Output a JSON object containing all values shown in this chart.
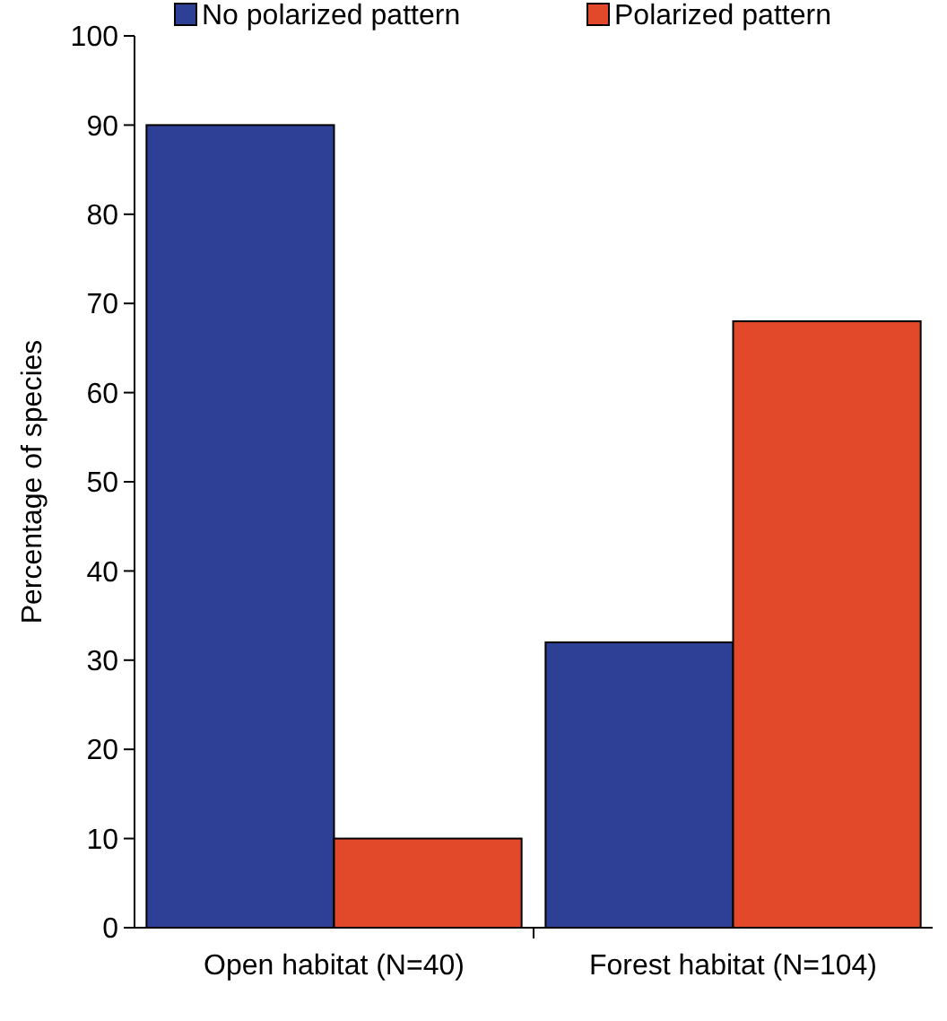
{
  "chart_data": {
    "type": "bar",
    "ylabel": "Percentage of species",
    "categories": [
      "Open habitat (N=40)",
      "Forest habitat (N=104)"
    ],
    "series": [
      {
        "name": "No polarized pattern",
        "color": "#2e3f96",
        "values": [
          90,
          32
        ]
      },
      {
        "name": "Polarized pattern",
        "color": "#e2482a",
        "values": [
          10,
          68
        ]
      }
    ],
    "ylim": [
      0,
      100
    ],
    "yticks": [
      0,
      10,
      20,
      30,
      40,
      50,
      60,
      70,
      80,
      90,
      100
    ],
    "grid": false,
    "legend": "top"
  }
}
